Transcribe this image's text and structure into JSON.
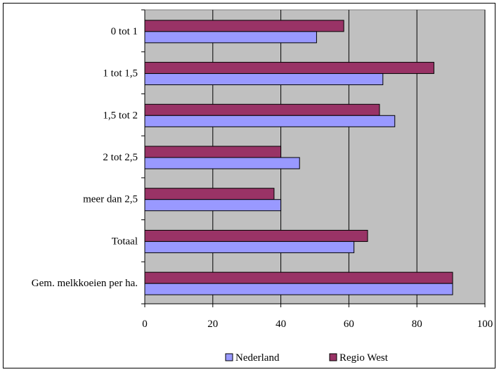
{
  "chart_data": {
    "type": "bar",
    "orientation": "horizontal",
    "categories": [
      "0 tot 1",
      "1 tot 1,5",
      "1,5 tot 2",
      "2 tot 2,5",
      "meer dan 2,5",
      "Totaal",
      "Gem. melkkoeien per ha."
    ],
    "series": [
      {
        "name": "Regio West",
        "color": "#993366",
        "values": [
          58.5,
          85,
          69,
          40,
          38,
          65.5,
          90.5
        ]
      },
      {
        "name": "Nederland",
        "color": "#9999ff",
        "values": [
          50.5,
          70,
          73.5,
          45.5,
          40,
          61.5,
          90.5
        ]
      }
    ],
    "xlim": [
      0,
      100
    ],
    "xticks": [
      "0",
      "20",
      "40",
      "60",
      "80",
      "100"
    ],
    "grid": true,
    "plot_background": "#c0c0c0",
    "legend": {
      "position": "bottom",
      "entries": [
        "Nederland",
        "Regio West"
      ]
    }
  }
}
